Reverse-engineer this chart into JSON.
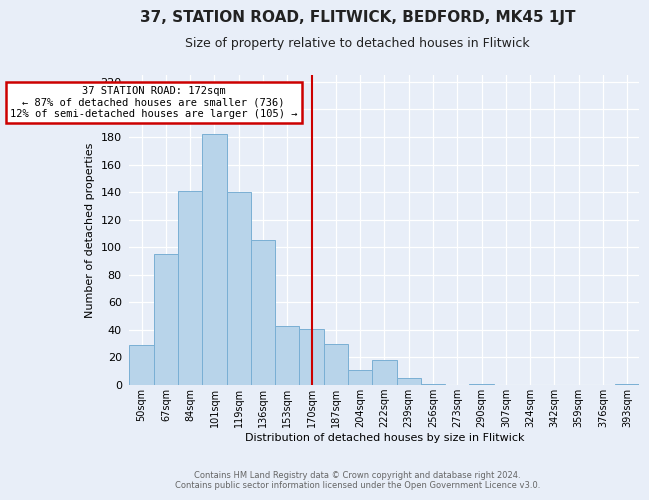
{
  "title": "37, STATION ROAD, FLITWICK, BEDFORD, MK45 1JT",
  "subtitle": "Size of property relative to detached houses in Flitwick",
  "xlabel": "Distribution of detached houses by size in Flitwick",
  "ylabel": "Number of detached properties",
  "bar_labels": [
    "50sqm",
    "67sqm",
    "84sqm",
    "101sqm",
    "119sqm",
    "136sqm",
    "153sqm",
    "170sqm",
    "187sqm",
    "204sqm",
    "222sqm",
    "239sqm",
    "256sqm",
    "273sqm",
    "290sqm",
    "307sqm",
    "324sqm",
    "342sqm",
    "359sqm",
    "376sqm",
    "393sqm"
  ],
  "bar_values": [
    29,
    95,
    141,
    182,
    140,
    105,
    43,
    41,
    30,
    11,
    18,
    5,
    1,
    0,
    1,
    0,
    0,
    0,
    0,
    0,
    1
  ],
  "bar_color": "#b8d4ea",
  "bar_edge_color": "#7aafd4",
  "vline_x": 7,
  "vline_color": "#cc0000",
  "annotation_title": "37 STATION ROAD: 172sqm",
  "annotation_line1": "← 87% of detached houses are smaller (736)",
  "annotation_line2": "12% of semi-detached houses are larger (105) →",
  "annotation_box_facecolor": "#ffffff",
  "annotation_box_edgecolor": "#cc0000",
  "ylim": [
    0,
    225
  ],
  "yticks": [
    0,
    20,
    40,
    60,
    80,
    100,
    120,
    140,
    160,
    180,
    200,
    220
  ],
  "footer1": "Contains HM Land Registry data © Crown copyright and database right 2024.",
  "footer2": "Contains public sector information licensed under the Open Government Licence v3.0.",
  "bg_color": "#e8eef8",
  "grid_color": "#ffffff",
  "title_fontsize": 11,
  "subtitle_fontsize": 9,
  "ylabel_fontsize": 8,
  "xlabel_fontsize": 8,
  "tick_fontsize": 7,
  "footer_fontsize": 6
}
